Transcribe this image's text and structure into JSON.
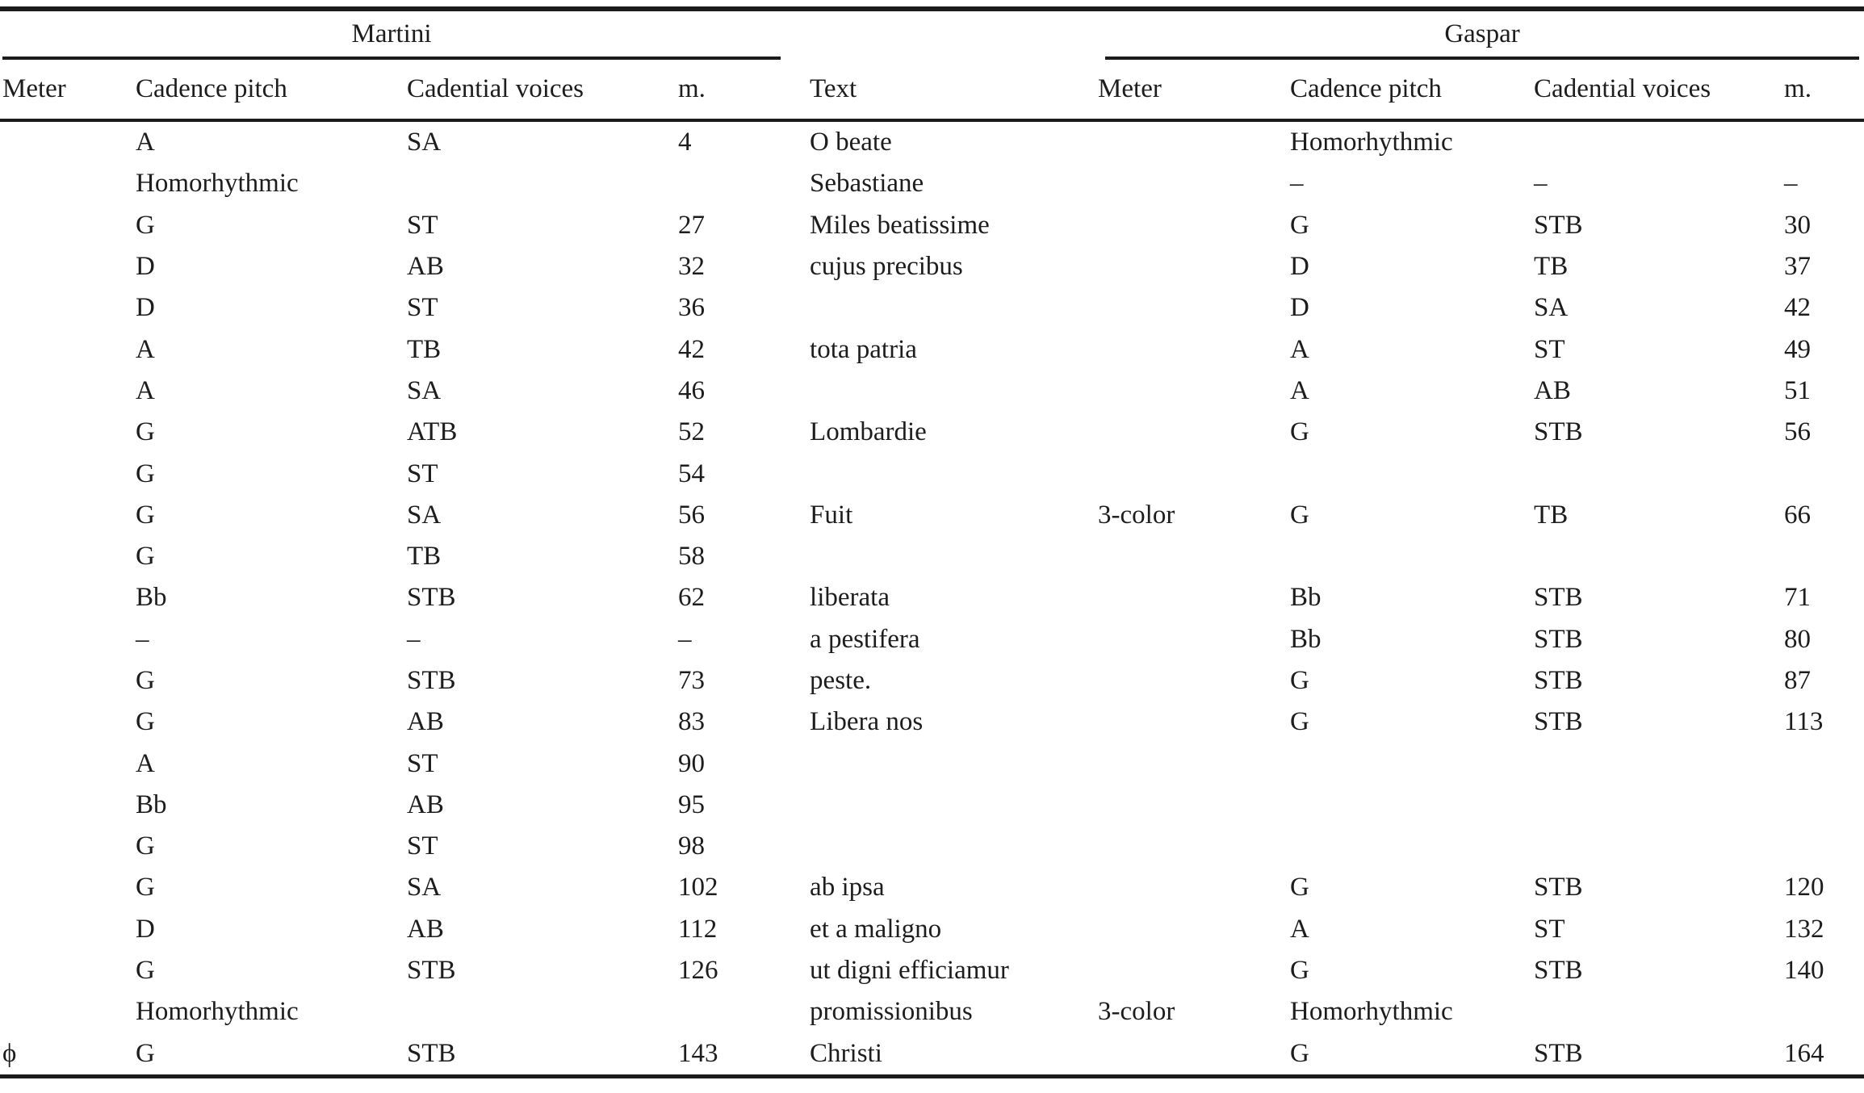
{
  "table": {
    "groups": {
      "martini": "Martini",
      "gaspar": "Gaspar"
    },
    "columns": [
      "Meter",
      "Cadence pitch",
      "Cadential voices",
      "m.",
      "Text",
      "Meter",
      "Cadence pitch",
      "Cadential voices",
      "m."
    ],
    "rows": [
      [
        "",
        "A",
        "SA",
        "4",
        "O beate",
        "",
        "Homorhythmic",
        "",
        ""
      ],
      [
        "",
        "Homorhythmic",
        "",
        "",
        "Sebastiane",
        "",
        "–",
        "–",
        "–"
      ],
      [
        "",
        "G",
        "ST",
        "27",
        "Miles beatissime",
        "",
        "G",
        "STB",
        "30"
      ],
      [
        "",
        "D",
        "AB",
        "32",
        "cujus precibus",
        "",
        "D",
        "TB",
        "37"
      ],
      [
        "",
        "D",
        "ST",
        "36",
        "",
        "",
        "D",
        "SA",
        "42"
      ],
      [
        "",
        "A",
        "TB",
        "42",
        "tota patria",
        "",
        "A",
        "ST",
        "49"
      ],
      [
        "",
        "A",
        "SA",
        "46",
        "",
        "",
        "A",
        "AB",
        "51"
      ],
      [
        "",
        "G",
        "ATB",
        "52",
        "Lombardie",
        "",
        "G",
        "STB",
        "56"
      ],
      [
        "",
        "G",
        "ST",
        "54",
        "",
        "",
        "",
        "",
        ""
      ],
      [
        "",
        "G",
        "SA",
        "56",
        "Fuit",
        "3-color",
        "G",
        "TB",
        "66"
      ],
      [
        "",
        "G",
        "TB",
        "58",
        "",
        "",
        "",
        "",
        ""
      ],
      [
        "",
        "Bb",
        "STB",
        "62",
        "liberata",
        "",
        "Bb",
        "STB",
        "71"
      ],
      [
        "",
        "–",
        "–",
        "–",
        "a pestifera",
        "",
        "Bb",
        "STB",
        "80"
      ],
      [
        "",
        "G",
        "STB",
        "73",
        "peste.",
        "",
        "G",
        "STB",
        "87"
      ],
      [
        "",
        "G",
        "AB",
        "83",
        "Libera nos",
        "",
        "G",
        "STB",
        "113"
      ],
      [
        "",
        "A",
        "ST",
        "90",
        "",
        "",
        "",
        "",
        ""
      ],
      [
        "",
        "Bb",
        "AB",
        "95",
        "",
        "",
        "",
        "",
        ""
      ],
      [
        "",
        "G",
        "ST",
        "98",
        "",
        "",
        "",
        "",
        ""
      ],
      [
        "",
        "G",
        "SA",
        "102",
        "ab ipsa",
        "",
        "G",
        "STB",
        "120"
      ],
      [
        "",
        "D",
        "AB",
        "112",
        "et a maligno",
        "",
        "A",
        "ST",
        "132"
      ],
      [
        "",
        "G",
        "STB",
        "126",
        "ut digni efficiamur",
        "",
        "G",
        "STB",
        "140"
      ],
      [
        "",
        "Homorhythmic",
        "",
        "",
        "promissionibus",
        "3-color",
        "Homorhythmic",
        "",
        ""
      ],
      [
        "ϕ",
        "G",
        "STB",
        "143",
        "Christi",
        "",
        "G",
        "STB",
        "164"
      ]
    ]
  }
}
